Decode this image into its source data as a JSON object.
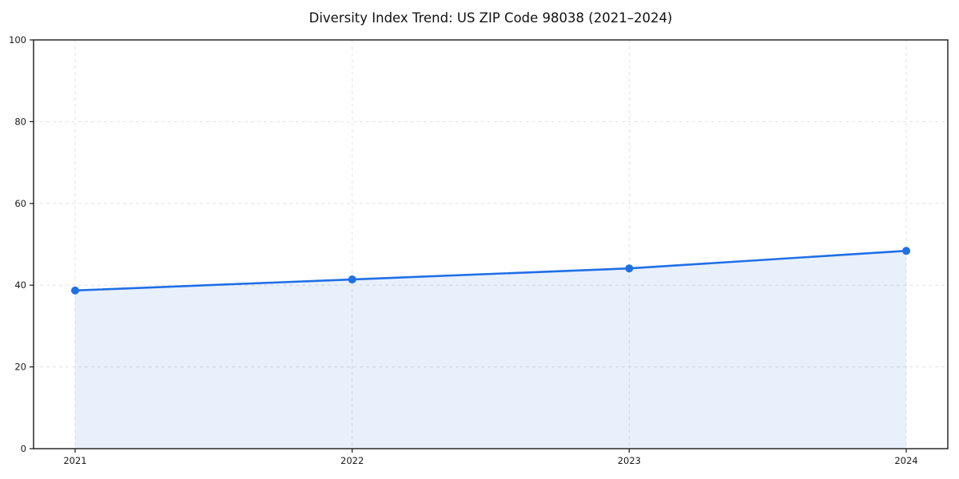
{
  "chart_data": {
    "type": "line",
    "title": "Diversity Index Trend: US ZIP Code 98038 (2021–2024)",
    "series_name": "Diversity Index",
    "x": [
      "2021",
      "2022",
      "2023",
      "2024"
    ],
    "values": [
      38.7,
      41.4,
      44.1,
      48.4
    ],
    "xlabel": "",
    "ylabel": "",
    "ylim": [
      0,
      100
    ],
    "yticks": [
      0,
      20,
      40,
      60,
      80,
      100
    ],
    "grid": "dashed",
    "legend": "none",
    "area_fill": true,
    "markers": "circle",
    "colors": {
      "line": "#1f6fe6",
      "marker": "#1f6fe6",
      "fill": "rgba(31,111,230,0.10)",
      "grid": "#e3e3e3",
      "axis": "#1a1a1a",
      "tick_text": "#1a1a1a",
      "background": "#ffffff"
    }
  }
}
